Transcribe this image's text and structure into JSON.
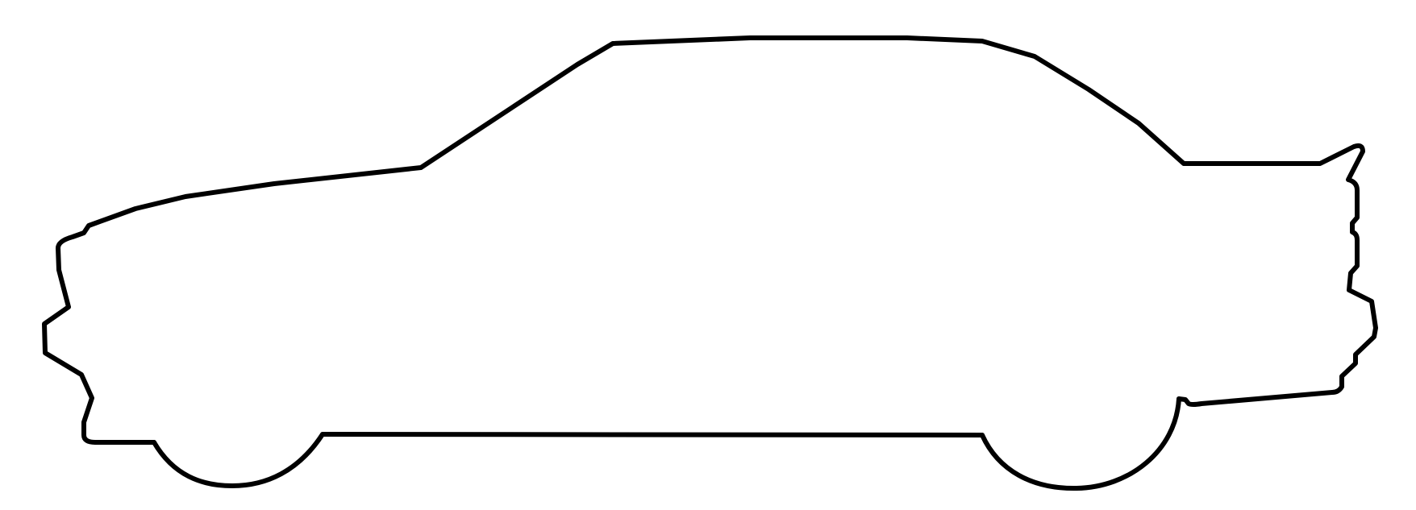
{
  "figure": {
    "subject": "car-side-silhouette-outline",
    "stroke_color": "#000000",
    "fill_color": "#ffffff",
    "background_color": "#ffffff"
  }
}
